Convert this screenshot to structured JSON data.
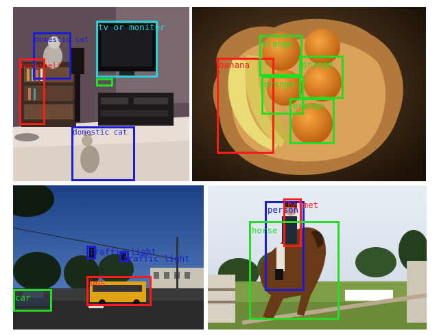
{
  "colors": {
    "red": "#ff1a1a",
    "blue": "#1c1cd6",
    "green": "#22dd22",
    "cyan": "#22d6d6"
  },
  "panels": {
    "living_room": {
      "scene": "living room with TV, bookshelf and cats",
      "detections": [
        {
          "label": "tv or monitor",
          "color": "cyan"
        },
        {
          "label": "domestic cat",
          "color": "blue"
        },
        {
          "label": "bookshelf",
          "color": "red"
        },
        {
          "label": "",
          "color": "green"
        },
        {
          "label": "domestic cat",
          "color": "blue"
        }
      ]
    },
    "fruit_bowl": {
      "scene": "bowl with bananas and oranges",
      "detections": [
        {
          "label": "banana",
          "color": "red"
        },
        {
          "label": "orange",
          "color": "green"
        },
        {
          "label": "orange",
          "color": "green"
        },
        {
          "label": "orange",
          "color": "green"
        },
        {
          "label": "orange",
          "color": "green"
        }
      ]
    },
    "street": {
      "scene": "street at dusk with school bus and car",
      "detections": [
        {
          "label": "traffic light",
          "color": "blue"
        },
        {
          "label": "traffic light",
          "color": "blue"
        },
        {
          "label": "bus",
          "color": "red"
        },
        {
          "label": "car",
          "color": "green"
        }
      ]
    },
    "equestrian": {
      "scene": "rider on horse jumping fence",
      "detections": [
        {
          "label": "person",
          "color": "blue"
        },
        {
          "label": "helmet",
          "color": "red"
        },
        {
          "label": "horse",
          "color": "green"
        }
      ]
    }
  }
}
